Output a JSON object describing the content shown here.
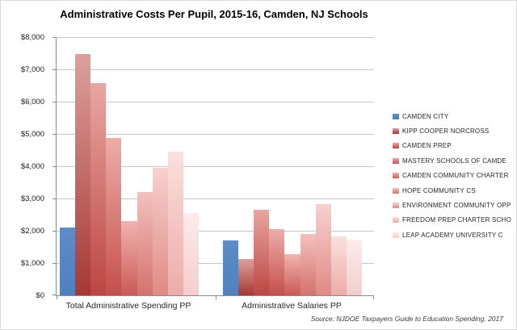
{
  "title": "Administrative Costs Per Pupil, 2015-16, Camden, NJ Schools",
  "source_note": "Source: NJDOE Taxpayers Guide to Education Spending, 2017",
  "chart_data": {
    "type": "bar",
    "title": "Administrative Costs Per Pupil, 2015-16, Camden, NJ Schools",
    "categories": [
      "Total Administrative Spending PP",
      "Administrative Salaries PP"
    ],
    "series": [
      {
        "name": "CAMDEN CITY",
        "color": "#4F81BD",
        "color_light": "#5D8CC6",
        "values": [
          2090,
          1710
        ]
      },
      {
        "name": "KIPP COOPER NORCROSS",
        "color": "#A53834",
        "color_light": "#DCA09D",
        "values": [
          7470,
          1130
        ]
      },
      {
        "name": "CAMDEN PREP",
        "color": "#BC4641",
        "color_light": "#E9A6A2",
        "values": [
          6580,
          2650
        ]
      },
      {
        "name": "MASTERY SCHOOLS OF CAMDE",
        "color": "#C44F4A",
        "color_light": "#EDADA9",
        "values": [
          4870,
          2060
        ]
      },
      {
        "name": "CAMDEN COMMUNITY CHARTER",
        "color": "#CC5A55",
        "color_light": "#F0B4B0",
        "values": [
          2290,
          1270
        ]
      },
      {
        "name": "HOPE COMMUNITY CS",
        "color": "#D5726D",
        "color_light": "#F3C1BD",
        "values": [
          3190,
          1890
        ]
      },
      {
        "name": "ENVIRONMENT COMMUNITY OPP",
        "color": "#E08A85",
        "color_light": "#F7D1CE",
        "values": [
          3960,
          2820
        ]
      },
      {
        "name": "FREEDOM PREP CHARTER SCHO",
        "color": "#EBACA8",
        "color_light": "#FAE0DE",
        "values": [
          4460,
          1830
        ]
      },
      {
        "name": "LEAP ACADEMY UNIVERSITY C",
        "color": "#F4CDCB",
        "color_light": "#FCECEB",
        "values": [
          2540,
          1730
        ]
      }
    ],
    "ylim": [
      0,
      8000
    ],
    "ytick_step": 1000,
    "ytick_labels": [
      "$0",
      "$1,000",
      "$2,000",
      "$3,000",
      "$4,000",
      "$5,000",
      "$6,000",
      "$7,000",
      "$8,000"
    ],
    "grid": true,
    "legend_position": "right",
    "gridline_color": "#c6c6c6",
    "axis_color": "#8c8c8c"
  }
}
